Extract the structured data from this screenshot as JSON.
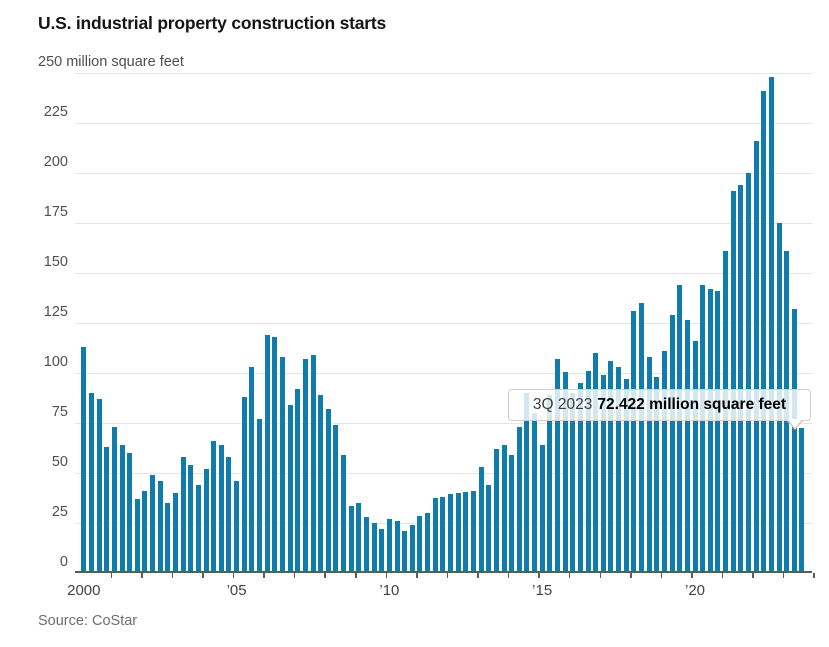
{
  "title": "U.S. industrial property construction starts",
  "source": "Source: CoStar",
  "tooltip": {
    "period": "3Q 2023",
    "value_text": "72.422 million square feet"
  },
  "colors": {
    "bar": "#0f7cab",
    "gridline": "#e4e4e4",
    "axis": "#5b5b5b",
    "title_text": "#151515",
    "tick_text": "#4f4f4f",
    "source_text": "#6e6e6e"
  },
  "chart_data": {
    "type": "bar",
    "title": "U.S. industrial property construction starts",
    "unit": "million square feet",
    "frequency": "quarterly",
    "start_period": "1Q 2000",
    "end_period": "3Q 2023",
    "ylim": [
      0,
      250
    ],
    "y_axis": {
      "top_label": "250 million square feet",
      "ticks": [
        0,
        25,
        50,
        75,
        100,
        125,
        150,
        175,
        200,
        225,
        250
      ]
    },
    "x_axis": {
      "labels": [
        {
          "text": "2000",
          "year": 2000
        },
        {
          "text": "’05",
          "year": 2005
        },
        {
          "text": "’10",
          "year": 2010
        },
        {
          "text": "’15",
          "year": 2015
        },
        {
          "text": "’20",
          "year": 2020
        }
      ],
      "tick_every_quarters": 4
    },
    "highlight": {
      "period": "3Q 2023",
      "value": 72.422
    },
    "series": [
      {
        "name": "Industrial property construction starts",
        "start_year": 2000,
        "start_quarter": 1,
        "values": [
          113,
          90,
          87,
          63,
          73,
          64,
          60,
          37,
          41,
          49,
          46,
          35,
          40,
          58,
          54,
          44,
          52,
          66,
          64,
          58,
          46,
          88,
          103,
          77,
          119,
          118,
          108,
          84,
          92,
          107,
          109,
          89,
          82,
          74,
          59,
          33.5,
          35,
          28,
          25,
          22,
          27,
          26,
          21,
          24,
          28.5,
          30,
          37.5,
          38,
          39.5,
          40,
          40.5,
          41,
          53,
          44,
          62,
          64,
          59,
          73,
          90,
          80,
          64,
          89,
          107,
          100.5,
          90,
          95,
          101,
          110,
          99,
          106,
          103,
          97,
          131,
          135,
          108,
          98,
          111,
          129,
          144,
          126.5,
          116,
          144,
          142,
          141,
          161,
          191,
          194,
          200,
          216,
          241,
          248,
          175,
          161,
          132,
          72.422
        ]
      }
    ]
  }
}
